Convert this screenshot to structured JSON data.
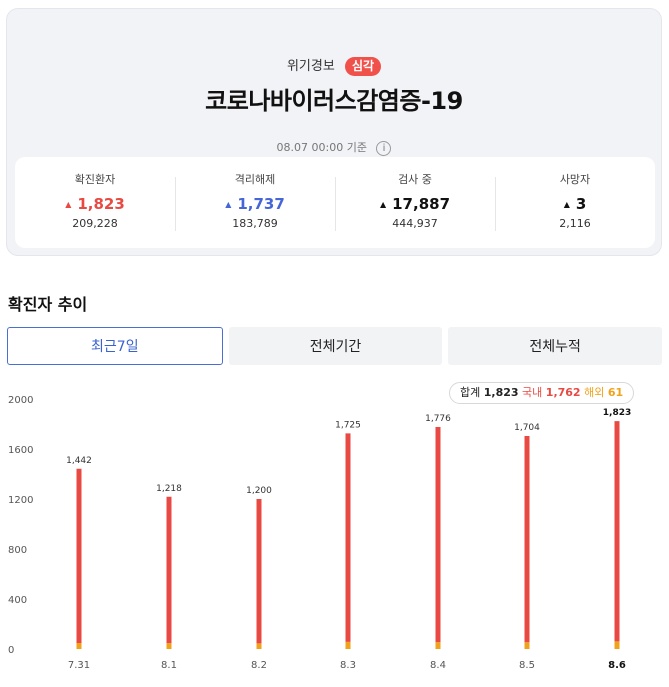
{
  "header": {
    "alert_label": "위기경보",
    "alert_level": "심각",
    "title": "코로나바이러스감염증-19",
    "basis": "08.07 00:00 기준",
    "info_glyph": "i"
  },
  "stats": [
    {
      "label": "확진환자",
      "value": "1,823",
      "total": "209,228",
      "trend": "up",
      "color": "#e84a43"
    },
    {
      "label": "격리해제",
      "value": "1,737",
      "total": "183,789",
      "trend": "up",
      "color": "#4566d6"
    },
    {
      "label": "검사 중",
      "value": "17,887",
      "total": "444,937",
      "trend": "up",
      "color": "#111111"
    },
    {
      "label": "사망자",
      "value": "3",
      "total": "2,116",
      "trend": "up",
      "color": "#111111"
    }
  ],
  "trend": {
    "title": "확진자 추이",
    "tabs": [
      "최근7일",
      "전체기간",
      "전체누적"
    ],
    "active_tab": 0,
    "legend": {
      "total_label": "합계",
      "total_value": "1,823",
      "domestic_label": "국내",
      "domestic_value": "1,762",
      "overseas_label": "해외",
      "overseas_value": "61"
    }
  },
  "chart_data": {
    "type": "bar",
    "stacked": true,
    "categories": [
      "7.31",
      "8.1",
      "8.2",
      "8.3",
      "8.4",
      "8.5",
      "8.6"
    ],
    "series": [
      {
        "name": "국내",
        "values": [
          1394,
          1171,
          1155,
          1668,
          1721,
          1650,
          1762
        ],
        "color": "#e84a43"
      },
      {
        "name": "해외",
        "values": [
          48,
          47,
          45,
          57,
          55,
          54,
          61
        ],
        "color": "#f0a21a"
      }
    ],
    "totals": [
      "1,442",
      "1,218",
      "1,200",
      "1,725",
      "1,776",
      "1,704",
      "1,823"
    ],
    "yticks": [
      0,
      400,
      800,
      1200,
      1600,
      2000
    ],
    "ylim": [
      0,
      2000
    ],
    "highlight_index": 6,
    "grid": false
  }
}
